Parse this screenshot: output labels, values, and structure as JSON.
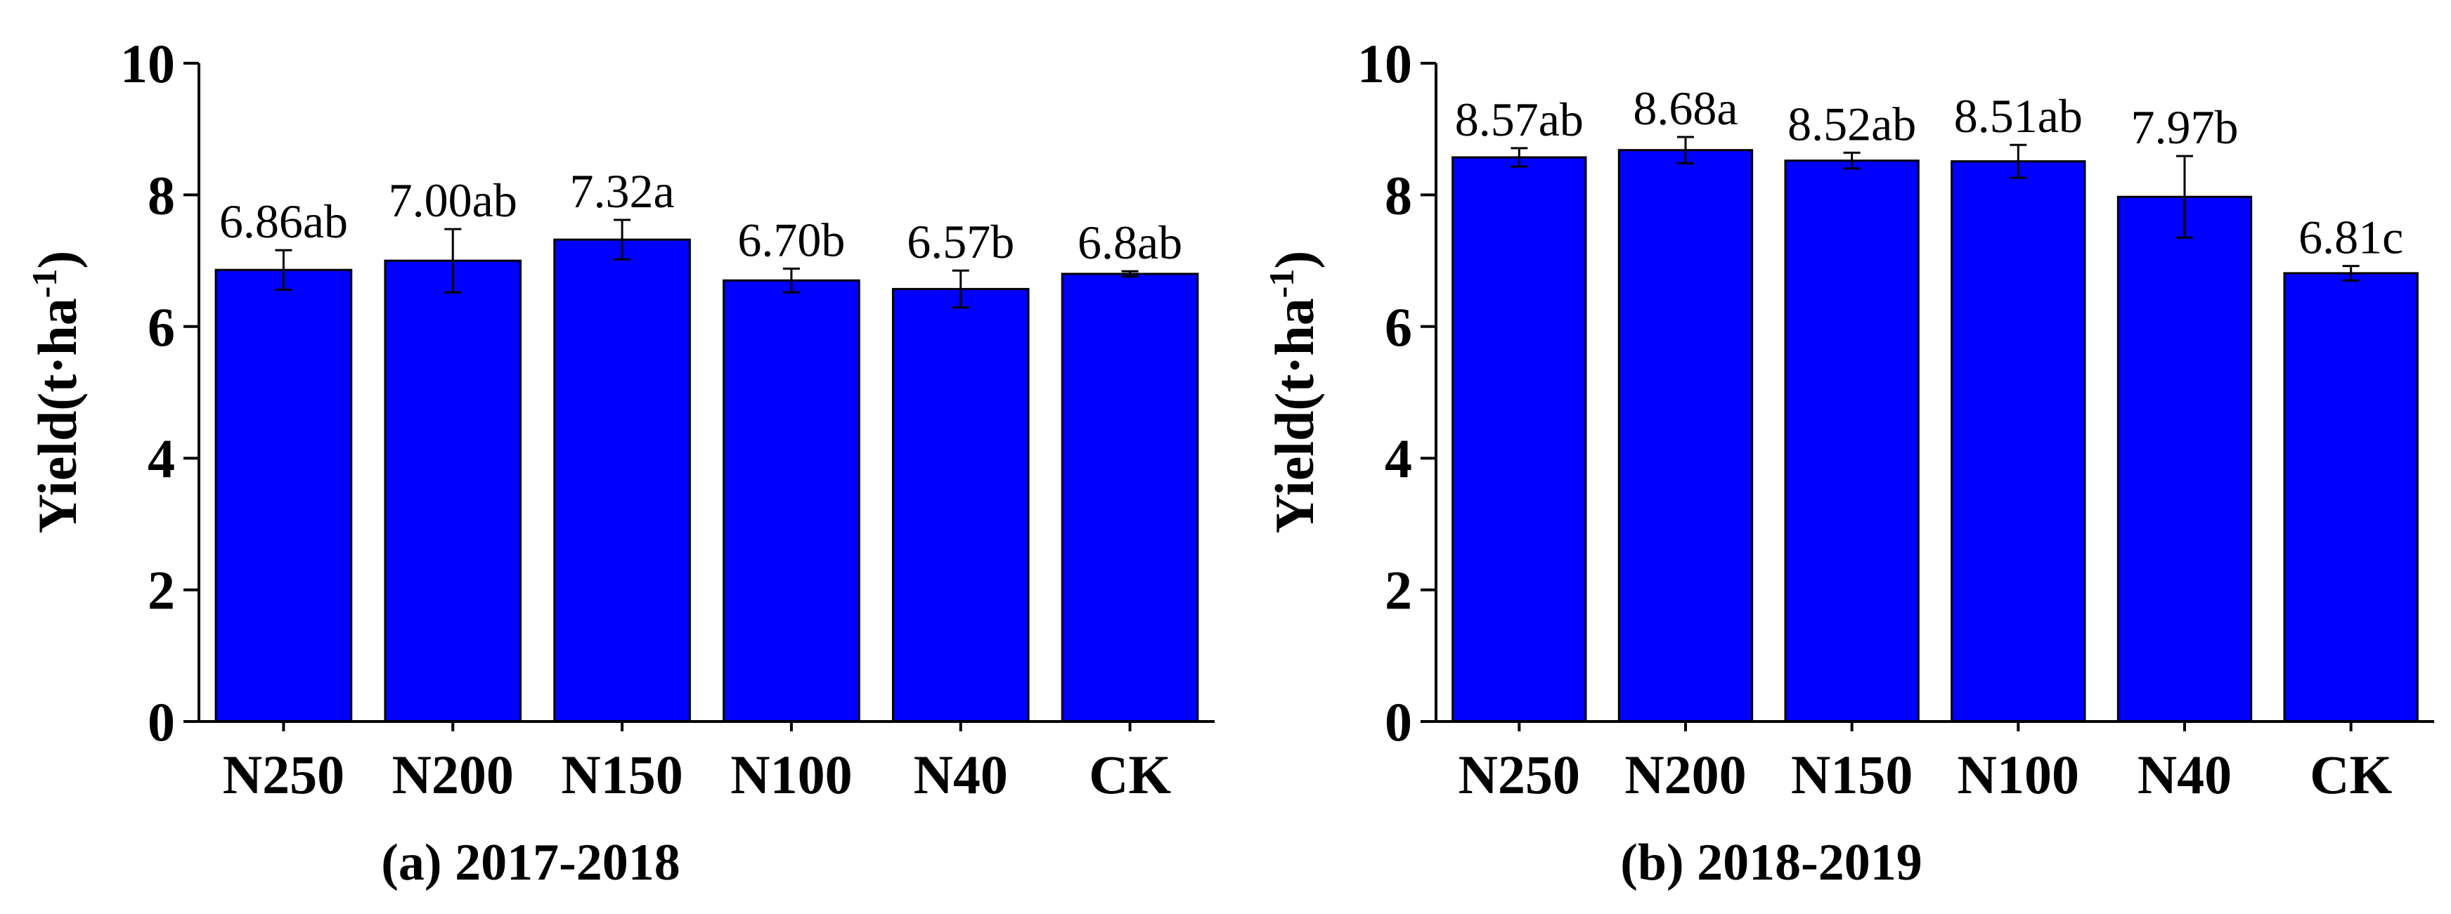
{
  "chart_data": [
    {
      "type": "bar",
      "caption": "(a) 2017-2018",
      "categories": [
        "N250",
        "N200",
        "N150",
        "N100",
        "N40",
        "CK"
      ],
      "values": [
        6.86,
        7.0,
        7.32,
        6.7,
        6.57,
        6.8
      ],
      "errors": [
        0.3,
        0.48,
        0.3,
        0.18,
        0.28,
        0.04
      ],
      "labels": [
        "6.86ab",
        "7.00ab",
        "7.32a",
        "6.70b",
        "6.57b",
        "6.8ab"
      ],
      "ylabel_main": "Yield(t·ha",
      "ylabel_sup": "-1",
      "ylabel_close": ")",
      "ylim": [
        0,
        10
      ],
      "yticks": [
        "0",
        "2",
        "4",
        "6",
        "8",
        "10"
      ],
      "bar_color": "#0000FF",
      "grid": false
    },
    {
      "type": "bar",
      "caption": "(b) 2018-2019",
      "categories": [
        "N250",
        "N200",
        "N150",
        "N100",
        "N40",
        "CK"
      ],
      "values": [
        8.57,
        8.68,
        8.52,
        8.51,
        7.97,
        6.81
      ],
      "errors": [
        0.14,
        0.2,
        0.12,
        0.25,
        0.62,
        0.11
      ],
      "labels": [
        "8.57ab",
        "8.68a",
        "8.52ab",
        "8.51ab",
        "7.97b",
        "6.81c"
      ],
      "ylabel_main": "Yield(t·ha",
      "ylabel_sup": "-1",
      "ylabel_close": ")",
      "ylim": [
        0,
        10
      ],
      "yticks": [
        "0",
        "2",
        "4",
        "6",
        "8",
        "10"
      ],
      "bar_color": "#0000FF",
      "grid": false
    }
  ]
}
